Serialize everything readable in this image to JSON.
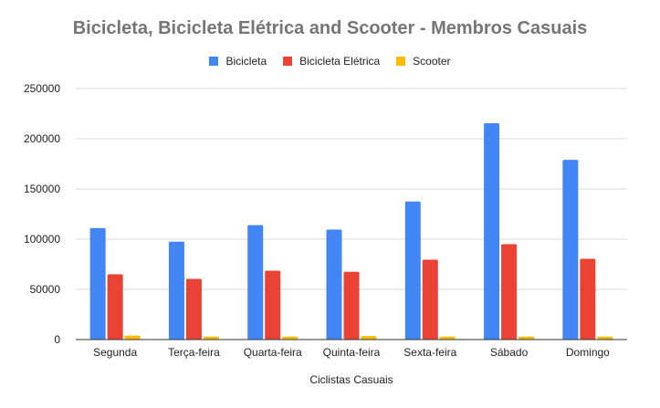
{
  "chart_data": {
    "type": "bar",
    "title": "Bicicleta, Bicicleta Elétrica and Scooter - Membros Casuais",
    "xlabel": "Ciclistas Casuais",
    "ylabel": "",
    "ylim": [
      0,
      250000
    ],
    "yticks": [
      "0",
      "50000",
      "100000",
      "150000",
      "200000",
      "250000"
    ],
    "grid": true,
    "legend_position": "top",
    "categories": [
      "Segunda",
      "Terça-feira",
      "Quarta-feira",
      "Quinta-feira",
      "Sexta-feira",
      "Sábado",
      "Domingo"
    ],
    "series": [
      {
        "name": "Bicicleta",
        "color": "#4285f4",
        "values": [
          111000,
          97500,
          114000,
          109500,
          137500,
          215500,
          179000
        ]
      },
      {
        "name": "Bicicleta Elétrica",
        "color": "#ea4335",
        "values": [
          65000,
          60500,
          68500,
          67500,
          79500,
          95000,
          80500
        ]
      },
      {
        "name": "Scooter",
        "color": "#fbbc04",
        "values": [
          4000,
          3000,
          3000,
          3500,
          3000,
          3000,
          3000
        ]
      }
    ]
  }
}
